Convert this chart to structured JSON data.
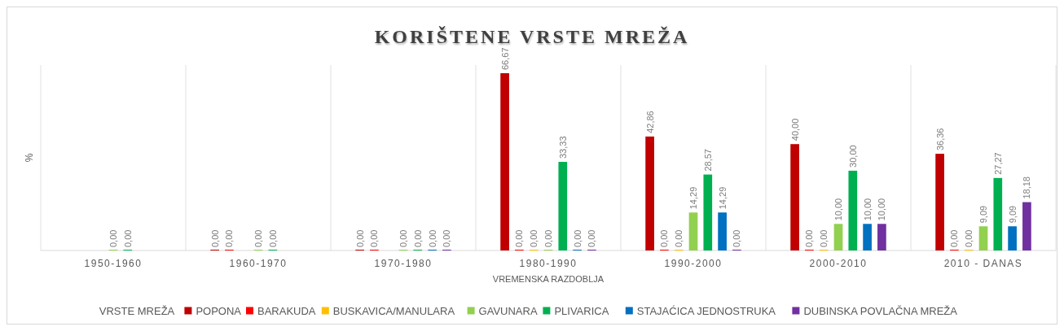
{
  "chart_data": {
    "type": "bar",
    "title": "KORIŠTENE VRSTE MREŽA",
    "xlabel": "VREMENSKA RAZDOBLJA",
    "ylabel": "%",
    "legend_title": "VRSTE MREŽA",
    "categories": [
      "1950-1960",
      "1960-1970",
      "1970-1980",
      "1980-1990",
      "1990-2000",
      "2000-2010",
      "2010 - DANAS"
    ],
    "series": [
      {
        "name": "POPONA",
        "color": "#c00000",
        "values": [
          null,
          0,
          0,
          66.67,
          42.86,
          40,
          36.36
        ],
        "value_labels": [
          null,
          "0,00",
          "0,00",
          "66,67",
          "42,86",
          "40,00",
          "36,36"
        ]
      },
      {
        "name": "BARAKUDA",
        "color": "#ff0000",
        "values": [
          null,
          0,
          0,
          0,
          0,
          0,
          0
        ],
        "value_labels": [
          null,
          "0,00",
          "0,00",
          "0,00",
          "0,00",
          "0,00",
          "0,00"
        ]
      },
      {
        "name": "BUSKAVICA/MANULARA",
        "color": "#ffc000",
        "values": [
          null,
          null,
          null,
          0,
          0,
          0,
          0
        ],
        "value_labels": [
          null,
          null,
          null,
          "0,00",
          "0,00",
          "0,00",
          "0,00"
        ]
      },
      {
        "name": "GAVUNARA",
        "color": "#92d050",
        "values": [
          0,
          0,
          0,
          0,
          14.29,
          10,
          9.09
        ],
        "value_labels": [
          "0,00",
          "0,00",
          "0,00",
          "0,00",
          "14,29",
          "10,00",
          "9,09"
        ]
      },
      {
        "name": "PLIVARICA",
        "color": "#00b050",
        "values": [
          0,
          0,
          0,
          33.33,
          28.57,
          30,
          27.27
        ],
        "value_labels": [
          "0,00",
          "0,00",
          "0,00",
          "33,33",
          "28,57",
          "30,00",
          "27,27"
        ]
      },
      {
        "name": "STAJAĆICA JEDNOSTRUKA",
        "color": "#0070c0",
        "values": [
          null,
          null,
          0,
          0,
          14.29,
          10,
          9.09
        ],
        "value_labels": [
          null,
          null,
          "0,00",
          "0,00",
          "14,29",
          "10,00",
          "9,09"
        ]
      },
      {
        "name": "DUBINSKA POVLAČNA MREŽA",
        "color": "#7030a0",
        "values": [
          null,
          null,
          0,
          0,
          0,
          10,
          18.18
        ],
        "value_labels": [
          null,
          null,
          "0,00",
          "0,00",
          "0,00",
          "10,00",
          "18,18"
        ]
      }
    ],
    "grid": "x",
    "legend": "bottom"
  }
}
